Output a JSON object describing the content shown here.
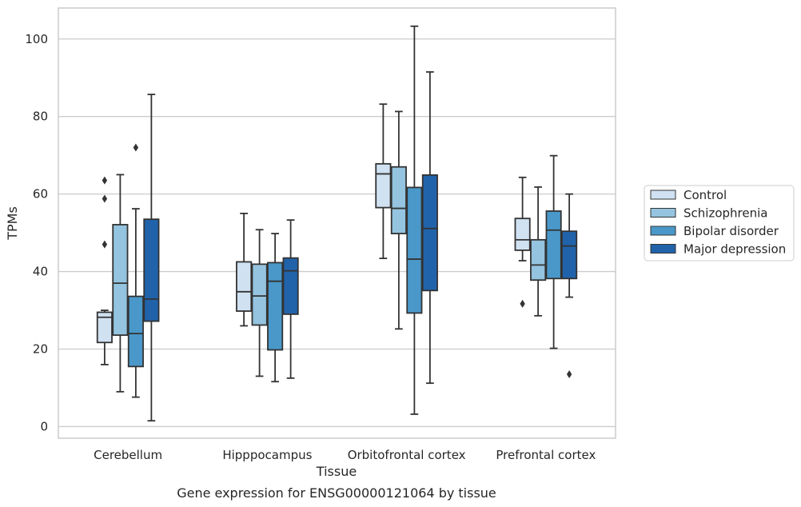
{
  "caption": "Gene expression for ENSG00000121064 by tissue",
  "chart_data": {
    "type": "box",
    "xlabel": "Tissue",
    "ylabel": "TPMs",
    "ylim": [
      -3,
      108
    ],
    "yticks": [
      0,
      20,
      40,
      60,
      80,
      100
    ],
    "grid": "horizontal",
    "legend_position": "right",
    "categories": [
      "Cerebellum",
      "Hipppocampus",
      "Orbitofrontal cortex",
      "Prefrontal cortex"
    ],
    "series": [
      {
        "name": "Control",
        "color": "#d0e1f2",
        "boxes": [
          {
            "whisker_low": 16,
            "q1": 21.7,
            "median": 28.2,
            "q3": 29.5,
            "whisker_high": 30,
            "outliers": [
              63.5,
              58.8,
              47
            ]
          },
          {
            "whisker_low": 26,
            "q1": 29.8,
            "median": 34.8,
            "q3": 42.5,
            "whisker_high": 55,
            "outliers": []
          },
          {
            "whisker_low": 43.4,
            "q1": 56.5,
            "median": 65.2,
            "q3": 67.8,
            "whisker_high": 83.2,
            "outliers": []
          },
          {
            "whisker_low": 42.8,
            "q1": 45.5,
            "median": 48.2,
            "q3": 53.7,
            "whisker_high": 64.3,
            "outliers": [
              31.7
            ]
          }
        ]
      },
      {
        "name": "Schizophrenia",
        "color": "#94c4df",
        "boxes": [
          {
            "whisker_low": 9,
            "q1": 23.6,
            "median": 37,
            "q3": 52.1,
            "whisker_high": 65,
            "outliers": []
          },
          {
            "whisker_low": 13,
            "q1": 26.2,
            "median": 33.7,
            "q3": 41.9,
            "whisker_high": 50.8,
            "outliers": []
          },
          {
            "whisker_low": 25.2,
            "q1": 49.8,
            "median": 56.3,
            "q3": 67,
            "whisker_high": 81.3,
            "outliers": []
          },
          {
            "whisker_low": 28.6,
            "q1": 37.8,
            "median": 41.7,
            "q3": 48.2,
            "whisker_high": 61.8,
            "outliers": []
          }
        ]
      },
      {
        "name": "Bipolar disorder",
        "color": "#4a98c9",
        "boxes": [
          {
            "whisker_low": 7.6,
            "q1": 15.5,
            "median": 24,
            "q3": 33.6,
            "whisker_high": 56.2,
            "outliers": [
              72
            ]
          },
          {
            "whisker_low": 11.6,
            "q1": 19.8,
            "median": 37.5,
            "q3": 42.3,
            "whisker_high": 49.8,
            "outliers": []
          },
          {
            "whisker_low": 3.2,
            "q1": 29.3,
            "median": 43.2,
            "q3": 61.7,
            "whisker_high": 103.3,
            "outliers": []
          },
          {
            "whisker_low": 20.2,
            "q1": 38.2,
            "median": 50.7,
            "q3": 55.6,
            "whisker_high": 69.9,
            "outliers": []
          }
        ]
      },
      {
        "name": "Major depression",
        "color": "#2163aa",
        "boxes": [
          {
            "whisker_low": 1.5,
            "q1": 27.2,
            "median": 32.9,
            "q3": 53.5,
            "whisker_high": 85.7,
            "outliers": []
          },
          {
            "whisker_low": 12.5,
            "q1": 29,
            "median": 40.2,
            "q3": 43.5,
            "whisker_high": 53.3,
            "outliers": []
          },
          {
            "whisker_low": 11.2,
            "q1": 35.1,
            "median": 51.1,
            "q3": 64.9,
            "whisker_high": 91.5,
            "outliers": []
          },
          {
            "whisker_low": 33.4,
            "q1": 38.2,
            "median": 46.6,
            "q3": 50.4,
            "whisker_high": 60,
            "outliers": [
              13.5
            ]
          }
        ]
      }
    ]
  }
}
